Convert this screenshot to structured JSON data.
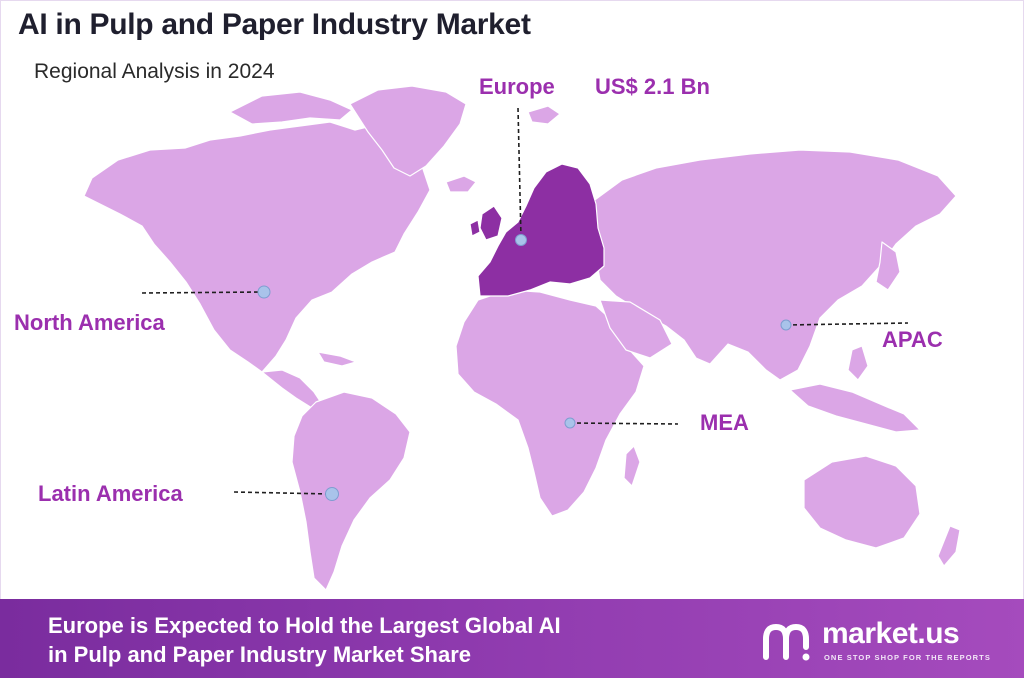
{
  "header": {
    "title": "AI in Pulp and Paper Industry Market",
    "subtitle": "Regional Analysis in 2024"
  },
  "regions": {
    "europe": {
      "label": "Europe",
      "value": "US$ 2.1 Bn",
      "highlighted": true
    },
    "north_america": {
      "label": "North America"
    },
    "latin_america": {
      "label": "Latin America"
    },
    "mea": {
      "label": "MEA"
    },
    "apac": {
      "label": "APAC"
    }
  },
  "footer": {
    "line1": "Europe is Expected to Hold the Largest Global AI",
    "line2": "in Pulp and Paper Industry Market Share"
  },
  "brand": {
    "name": "market.us",
    "tagline": "ONE STOP SHOP FOR THE REPORTS"
  },
  "colors": {
    "land": "#dba6e6",
    "europe_highlight": "#8d2fa3",
    "label": "#9b2fae",
    "marker": "#a9c3ea",
    "footer_start": "#7a2c9e",
    "footer_end": "#a54bbd"
  }
}
